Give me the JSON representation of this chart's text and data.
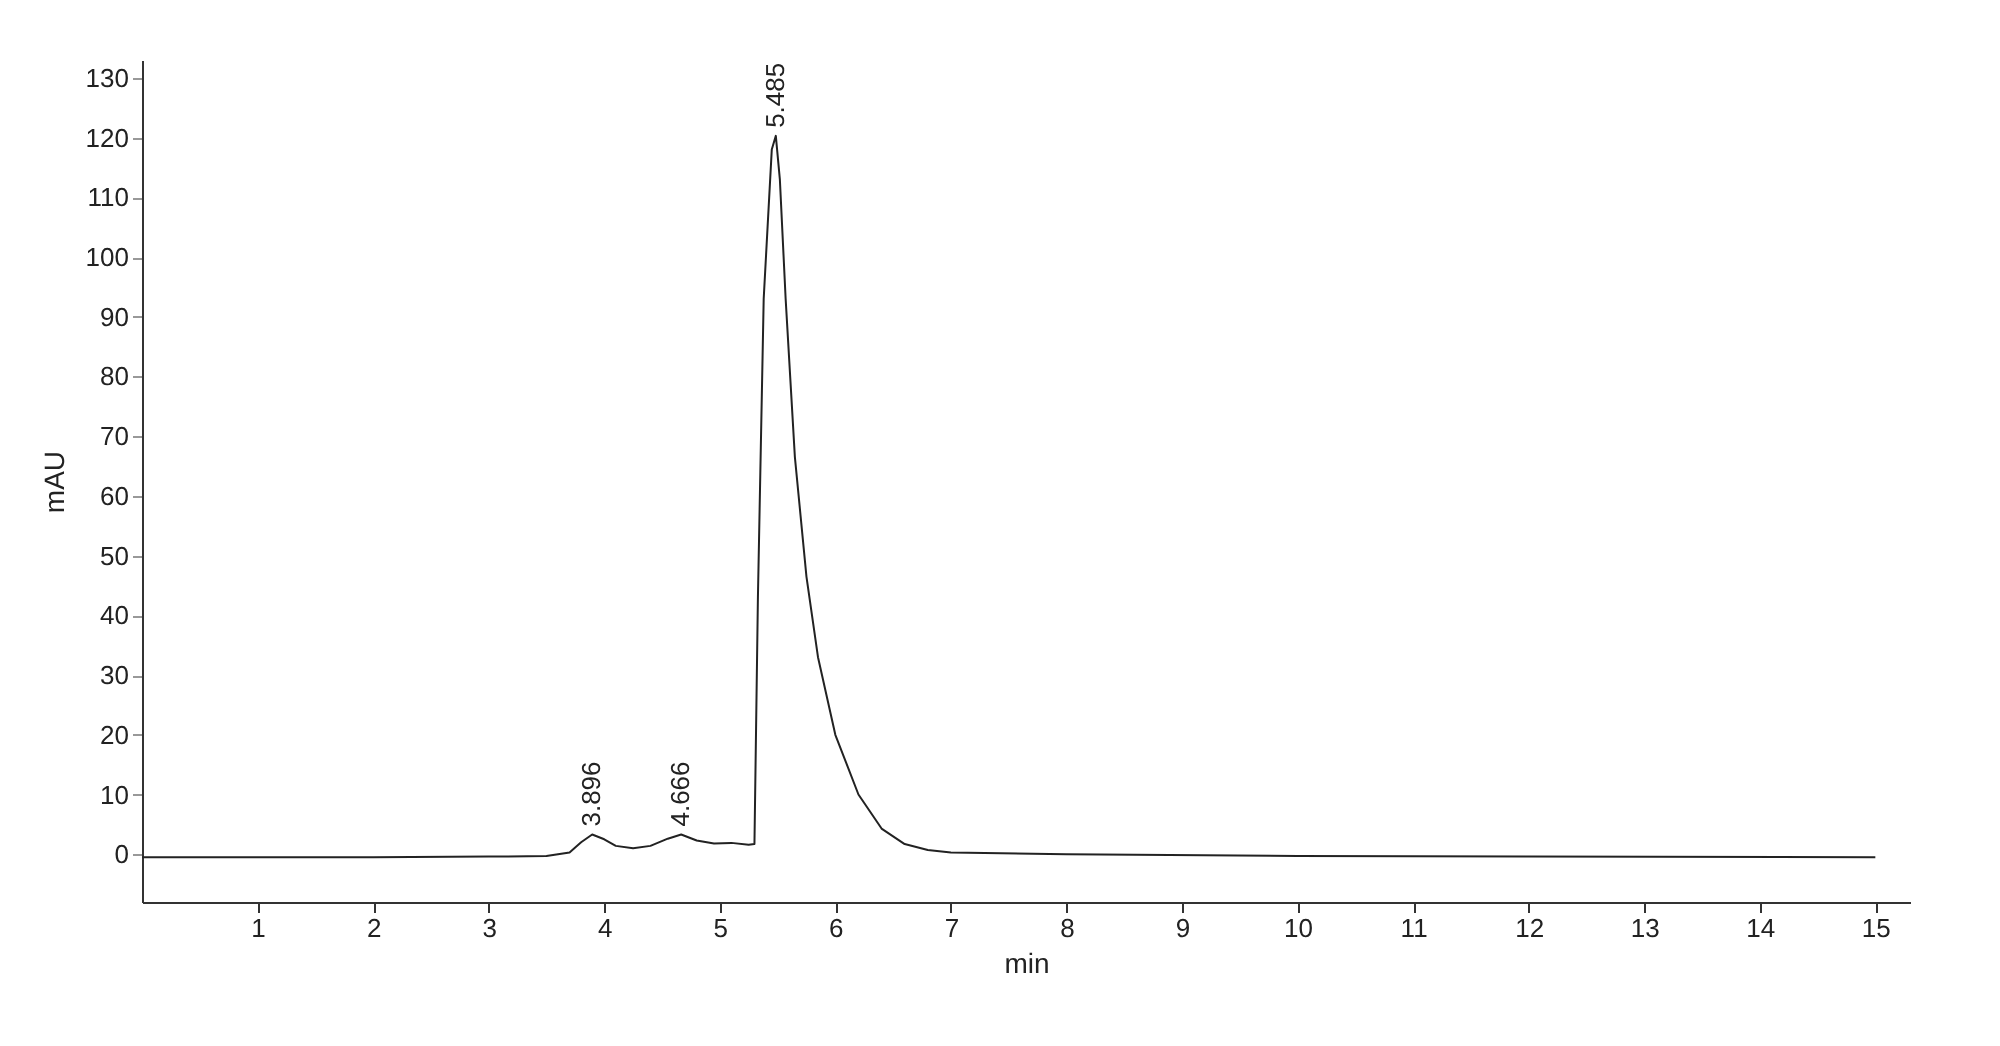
{
  "chart_data": {
    "type": "line",
    "xlabel": "min",
    "ylabel": "mAU",
    "x": [
      0,
      1,
      2,
      3,
      3.5,
      3.7,
      3.8,
      3.896,
      4.0,
      4.1,
      4.25,
      4.4,
      4.55,
      4.666,
      4.8,
      4.95,
      5.1,
      5.25,
      5.3,
      5.33,
      5.38,
      5.45,
      5.485,
      5.52,
      5.57,
      5.65,
      5.75,
      5.85,
      6.0,
      6.2,
      6.4,
      6.6,
      6.8,
      7.0,
      8.0,
      10,
      12,
      15
    ],
    "series": [
      {
        "color": "#222222",
        "values": [
          -0.5,
          -0.5,
          -0.5,
          -0.4,
          -0.3,
          0.3,
          2.0,
          3.3,
          2.5,
          1.4,
          1.0,
          1.4,
          2.6,
          3.3,
          2.3,
          1.8,
          1.9,
          1.6,
          1.7,
          43,
          93,
          118,
          120.3,
          113,
          93,
          66.5,
          46.5,
          33,
          20,
          10,
          4.3,
          1.7,
          0.7,
          0.3,
          0,
          -0.3,
          -0.4,
          -0.5
        ]
      }
    ],
    "annotations": [
      {
        "text": "3.896",
        "x": 3.896,
        "y": 3.3
      },
      {
        "text": "4.666",
        "x": 4.666,
        "y": 3.3
      },
      {
        "text": "5.485",
        "x": 5.485,
        "y": 120.3
      }
    ],
    "xlim": [
      0,
      15.3
    ],
    "xticks": [
      1,
      2,
      3,
      4,
      5,
      6,
      7,
      8,
      9,
      10,
      11,
      12,
      13,
      14,
      15
    ],
    "ylim": [
      -8,
      133
    ],
    "yticks": [
      0,
      10,
      20,
      30,
      40,
      50,
      60,
      70,
      80,
      90,
      100,
      110,
      120,
      130
    ],
    "grid": false,
    "marker": "none",
    "line_style": "solid"
  }
}
